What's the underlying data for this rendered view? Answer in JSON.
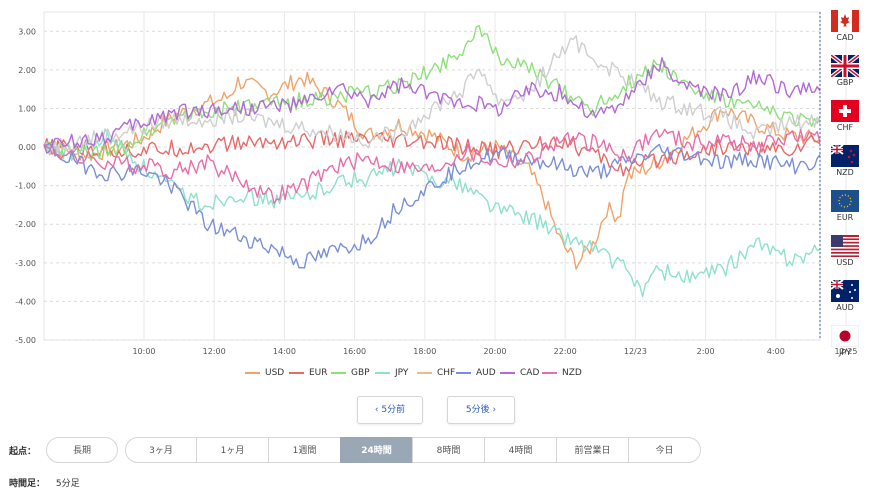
{
  "chart_data": {
    "type": "line",
    "x_ticks": [
      "10:00",
      "12:00",
      "14:00",
      "16:00",
      "18:00",
      "20:00",
      "22:00",
      "12/23",
      "2:00",
      "4:00",
      "12/25"
    ],
    "y_ticks": [
      "3.00",
      "2.00",
      "1.00",
      "0.00",
      "-1.00",
      "-2.00",
      "-3.00",
      "-4.00",
      "-5.00"
    ],
    "ylim": [
      -5,
      3.5
    ],
    "x_range": [
      0,
      24
    ],
    "grid": true,
    "series": [
      {
        "name": "USD",
        "color": "#f0a36b",
        "keys": [
          [
            0,
            0
          ],
          [
            1.5,
            -0.2
          ],
          [
            3,
            0.2
          ],
          [
            4,
            0.8
          ],
          [
            5,
            1.1
          ],
          [
            5.7,
            1.3
          ],
          [
            6,
            1.7
          ],
          [
            7,
            1.4
          ],
          [
            8,
            1.8
          ],
          [
            9,
            1.2
          ],
          [
            10,
            0.3
          ],
          [
            11,
            0.6
          ],
          [
            12,
            0.3
          ],
          [
            13,
            -0.2
          ],
          [
            14,
            0
          ],
          [
            15,
            -0.6
          ],
          [
            15.5,
            -1.4
          ],
          [
            16,
            -2.5
          ],
          [
            16.5,
            -3
          ],
          [
            17,
            -2.5
          ],
          [
            17.4,
            -1.6
          ],
          [
            17.8,
            -1.8
          ],
          [
            18,
            -0.8
          ],
          [
            19,
            -0.4
          ],
          [
            20,
            0.3
          ],
          [
            21,
            1.0
          ],
          [
            22,
            0.6
          ],
          [
            23,
            0.3
          ],
          [
            24,
            0.2
          ]
        ]
      },
      {
        "name": "EUR",
        "color": "#e66a6a",
        "keys": [
          [
            0,
            0
          ],
          [
            3,
            -0.1
          ],
          [
            6,
            0.1
          ],
          [
            9,
            0.2
          ],
          [
            12,
            0.1
          ],
          [
            14,
            -0.1
          ],
          [
            16,
            0.2
          ],
          [
            18,
            -0.6
          ],
          [
            19,
            -0.3
          ],
          [
            21,
            0
          ],
          [
            23,
            -0.1
          ],
          [
            24,
            0.2
          ]
        ]
      },
      {
        "name": "GBP",
        "color": "#8fe07c",
        "keys": [
          [
            0,
            0
          ],
          [
            2,
            -0.2
          ],
          [
            4,
            0.8
          ],
          [
            6,
            1.0
          ],
          [
            8,
            1.2
          ],
          [
            10,
            1.4
          ],
          [
            11,
            1.6
          ],
          [
            12,
            2.0
          ],
          [
            13,
            2.6
          ],
          [
            13.5,
            3.0
          ],
          [
            14,
            2.4
          ],
          [
            15,
            2.0
          ],
          [
            16,
            1.5
          ],
          [
            17,
            1.0
          ],
          [
            18,
            1.6
          ],
          [
            19,
            2.2
          ],
          [
            20,
            1.5
          ],
          [
            21,
            1.2
          ],
          [
            22,
            1.0
          ],
          [
            23,
            0.8
          ],
          [
            24,
            0.6
          ]
        ]
      },
      {
        "name": "JPY",
        "color": "#8fe0cc",
        "keys": [
          [
            0,
            0
          ],
          [
            1,
            -0.2
          ],
          [
            2,
            0.3
          ],
          [
            3,
            -0.5
          ],
          [
            4,
            -1.1
          ],
          [
            5,
            -1.5
          ],
          [
            6,
            -1.2
          ],
          [
            7,
            -1.4
          ],
          [
            8,
            -1.3
          ],
          [
            9,
            -0.9
          ],
          [
            10,
            -0.8
          ],
          [
            11,
            -0.5
          ],
          [
            12,
            -0.8
          ],
          [
            13,
            -1.0
          ],
          [
            14,
            -1.6
          ],
          [
            15,
            -1.8
          ],
          [
            16,
            -2.3
          ],
          [
            17,
            -2.6
          ],
          [
            18,
            -3.2
          ],
          [
            18.5,
            -3.7
          ],
          [
            19,
            -3.2
          ],
          [
            20,
            -3.4
          ],
          [
            21,
            -3.2
          ],
          [
            22,
            -2.5
          ],
          [
            23,
            -2.9
          ],
          [
            24,
            -2.7
          ]
        ]
      },
      {
        "name": "CHF",
        "color": "#cfcfcf",
        "keys": [
          [
            0,
            0
          ],
          [
            2,
            0.3
          ],
          [
            4,
            0.7
          ],
          [
            6,
            0.8
          ],
          [
            8,
            0.5
          ],
          [
            10,
            0.2
          ],
          [
            11,
            0.4
          ],
          [
            12,
            1.0
          ],
          [
            13,
            1.5
          ],
          [
            13.5,
            2.1
          ],
          [
            14,
            1.2
          ],
          [
            15,
            1.4
          ],
          [
            16,
            2.5
          ],
          [
            16.5,
            2.7
          ],
          [
            17,
            2.3
          ],
          [
            18,
            1.8
          ],
          [
            19,
            1.2
          ],
          [
            20,
            1.0
          ],
          [
            21,
            0.8
          ],
          [
            22,
            0.3
          ],
          [
            23,
            0.6
          ],
          [
            24,
            0.7
          ]
        ]
      },
      {
        "name": "AUD",
        "color": "#7b8fd6",
        "keys": [
          [
            0,
            0
          ],
          [
            1,
            -0.4
          ],
          [
            2,
            -0.7
          ],
          [
            3,
            -0.6
          ],
          [
            4,
            -1.0
          ],
          [
            5,
            -2.0
          ],
          [
            6,
            -2.3
          ],
          [
            7,
            -2.6
          ],
          [
            8,
            -3.0
          ],
          [
            9,
            -2.7
          ],
          [
            10,
            -2.4
          ],
          [
            11,
            -1.5
          ],
          [
            12,
            -1.0
          ],
          [
            13,
            -0.4
          ],
          [
            14,
            -0.2
          ],
          [
            15,
            -0.3
          ],
          [
            16,
            -0.5
          ],
          [
            17,
            -0.7
          ],
          [
            18,
            -0.4
          ],
          [
            19,
            -0.1
          ],
          [
            20,
            -0.2
          ],
          [
            21,
            -0.4
          ],
          [
            22,
            -0.3
          ],
          [
            23,
            -0.5
          ],
          [
            24,
            -0.4
          ]
        ]
      },
      {
        "name": "CAD",
        "color": "#b26ad6",
        "keys": [
          [
            0,
            0
          ],
          [
            2,
            0.3
          ],
          [
            4,
            0.9
          ],
          [
            6,
            1.0
          ],
          [
            8,
            1.1
          ],
          [
            9,
            1.5
          ],
          [
            10,
            1.2
          ],
          [
            11,
            1.6
          ],
          [
            12,
            1.3
          ],
          [
            13,
            1.2
          ],
          [
            14,
            1.0
          ],
          [
            15,
            1.5
          ],
          [
            16,
            1.4
          ],
          [
            17,
            0.8
          ],
          [
            18,
            1.2
          ],
          [
            19,
            2.2
          ],
          [
            19.5,
            1.8
          ],
          [
            20,
            1.5
          ],
          [
            21,
            1.3
          ],
          [
            22,
            1.8
          ],
          [
            23,
            1.5
          ],
          [
            24,
            1.4
          ]
        ]
      },
      {
        "name": "NZD",
        "color": "#e86ea9",
        "keys": [
          [
            0,
            0
          ],
          [
            1,
            -0.3
          ],
          [
            2,
            -0.4
          ],
          [
            3,
            -0.5
          ],
          [
            4,
            -0.6
          ],
          [
            5,
            -0.4
          ],
          [
            6,
            -0.8
          ],
          [
            7,
            -1.3
          ],
          [
            8,
            -1.0
          ],
          [
            9,
            -0.5
          ],
          [
            10,
            -0.3
          ],
          [
            11,
            -0.5
          ],
          [
            12,
            -0.6
          ],
          [
            13,
            -0.1
          ],
          [
            14,
            -0.4
          ],
          [
            15,
            -0.3
          ],
          [
            16,
            0.2
          ],
          [
            17,
            0.1
          ],
          [
            18,
            -0.2
          ],
          [
            19,
            0.4
          ],
          [
            20,
            0.1
          ],
          [
            21,
            0.2
          ],
          [
            22,
            0.0
          ],
          [
            23,
            0.3
          ],
          [
            24,
            0.2
          ]
        ]
      }
    ]
  },
  "flags": [
    {
      "code": "CAD",
      "icon": "canada-flag-icon"
    },
    {
      "code": "GBP",
      "icon": "uk-flag-icon"
    },
    {
      "code": "CHF",
      "icon": "swiss-flag-icon"
    },
    {
      "code": "NZD",
      "icon": "new-zealand-flag-icon"
    },
    {
      "code": "EUR",
      "icon": "eu-flag-icon"
    },
    {
      "code": "USD",
      "icon": "us-flag-icon"
    },
    {
      "code": "AUD",
      "icon": "australia-flag-icon"
    },
    {
      "code": "JPY",
      "icon": "japan-flag-icon"
    }
  ],
  "nav": {
    "prev_label": "‹ 5分前",
    "next_label": "5分後 ›"
  },
  "period": {
    "label": "起点：",
    "long_label": "長期",
    "tabs": [
      "3ヶ月",
      "1ヶ月",
      "1週間",
      "24時間",
      "8時間",
      "4時間",
      "前営業日",
      "今日"
    ],
    "active": "24時間"
  },
  "timeframe": {
    "label": "時間足：",
    "value": "5分足"
  }
}
